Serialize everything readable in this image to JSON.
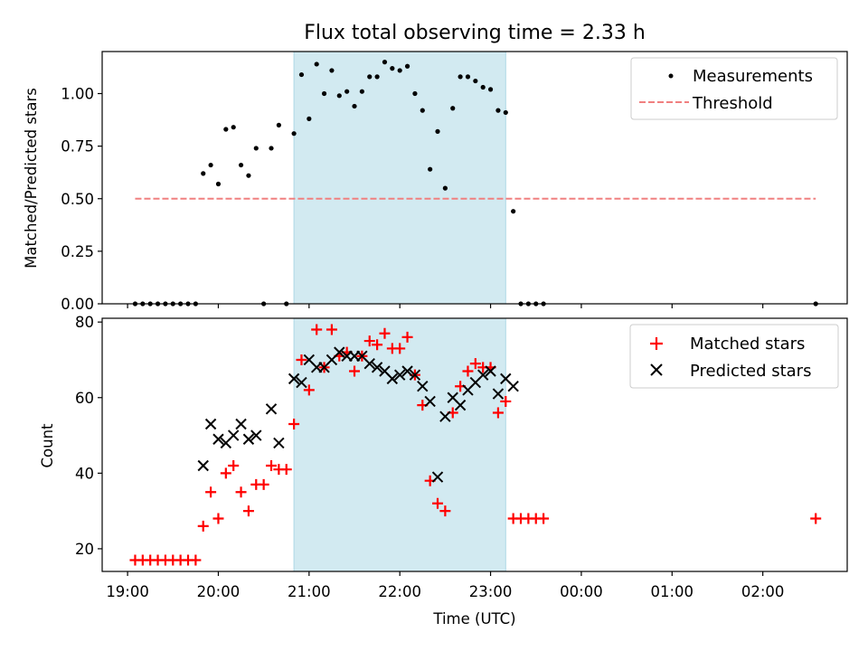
{
  "chart_data": [
    {
      "type": "scatter",
      "title": "Flux total observing time = 2.33 h",
      "xlabel": "",
      "ylabel": "Matched/Predicted stars",
      "ylim": [
        0,
        1.2
      ],
      "yticks": [
        "0.00",
        "0.25",
        "0.50",
        "0.75",
        "1.00"
      ],
      "ytick_values": [
        0,
        0.25,
        0.5,
        0.75,
        1.0
      ],
      "xlim_hours": [
        18.72,
        26.93
      ],
      "grid": false,
      "legend_position": "top-right",
      "shaded_interval": {
        "start": "20:50",
        "end": "23:10",
        "color": "#add8e6"
      },
      "series": [
        {
          "name": "Measurements",
          "marker": "dot",
          "color": "#000000",
          "points": [
            [
              "19:05",
              0
            ],
            [
              "19:10",
              0
            ],
            [
              "19:15",
              0
            ],
            [
              "19:20",
              0
            ],
            [
              "19:25",
              0
            ],
            [
              "19:30",
              0
            ],
            [
              "19:35",
              0
            ],
            [
              "19:40",
              0
            ],
            [
              "19:45",
              0
            ],
            [
              "19:50",
              0.62
            ],
            [
              "19:55",
              0.66
            ],
            [
              "20:00",
              0.57
            ],
            [
              "20:05",
              0.83
            ],
            [
              "20:10",
              0.84
            ],
            [
              "20:15",
              0.66
            ],
            [
              "20:20",
              0.61
            ],
            [
              "20:25",
              0.74
            ],
            [
              "20:30",
              0
            ],
            [
              "20:35",
              0.74
            ],
            [
              "20:40",
              0.85
            ],
            [
              "20:45",
              0
            ],
            [
              "20:50",
              0.81
            ],
            [
              "20:55",
              1.09
            ],
            [
              "21:00",
              0.88
            ],
            [
              "21:05",
              1.14
            ],
            [
              "21:10",
              1.0
            ],
            [
              "21:15",
              1.11
            ],
            [
              "21:20",
              0.99
            ],
            [
              "21:25",
              1.01
            ],
            [
              "21:30",
              0.94
            ],
            [
              "21:35",
              1.01
            ],
            [
              "21:40",
              1.08
            ],
            [
              "21:45",
              1.08
            ],
            [
              "21:50",
              1.15
            ],
            [
              "21:55",
              1.12
            ],
            [
              "22:00",
              1.11
            ],
            [
              "22:05",
              1.13
            ],
            [
              "22:10",
              1.0
            ],
            [
              "22:15",
              0.92
            ],
            [
              "22:20",
              0.64
            ],
            [
              "22:25",
              0.82
            ],
            [
              "22:30",
              0.55
            ],
            [
              "22:35",
              0.93
            ],
            [
              "22:40",
              1.08
            ],
            [
              "22:45",
              1.08
            ],
            [
              "22:50",
              1.06
            ],
            [
              "22:55",
              1.03
            ],
            [
              "23:00",
              1.02
            ],
            [
              "23:05",
              0.92
            ],
            [
              "23:10",
              0.91
            ],
            [
              "23:15",
              0.44
            ],
            [
              "23:20",
              0
            ],
            [
              "23:25",
              0
            ],
            [
              "23:30",
              0
            ],
            [
              "23:35",
              0
            ],
            [
              "02:35",
              0
            ]
          ]
        },
        {
          "name": "Threshold",
          "marker": "dashed-line",
          "color": "#f08080",
          "points": [
            [
              "19:05",
              0.5
            ],
            [
              "02:35",
              0.5
            ]
          ]
        }
      ]
    },
    {
      "type": "scatter",
      "title": "",
      "xlabel": "Time (UTC)",
      "ylabel": "Count",
      "ylim": [
        14,
        81
      ],
      "yticks": [
        "20",
        "40",
        "60",
        "80"
      ],
      "ytick_values": [
        20,
        40,
        60,
        80
      ],
      "xticks": [
        "19:00",
        "20:00",
        "21:00",
        "22:00",
        "23:00",
        "00:00",
        "01:00",
        "02:00"
      ],
      "xtick_hours": [
        19,
        20,
        21,
        22,
        23,
        24,
        25,
        26
      ],
      "xlim_hours": [
        18.72,
        26.93
      ],
      "grid": false,
      "legend_position": "top-right",
      "shaded_interval": {
        "start": "20:50",
        "end": "23:10",
        "color": "#add8e6"
      },
      "series": [
        {
          "name": "Matched stars",
          "marker": "plus",
          "color": "#ff0000",
          "points": [
            [
              "19:05",
              17
            ],
            [
              "19:10",
              17
            ],
            [
              "19:15",
              17
            ],
            [
              "19:20",
              17
            ],
            [
              "19:25",
              17
            ],
            [
              "19:30",
              17
            ],
            [
              "19:35",
              17
            ],
            [
              "19:40",
              17
            ],
            [
              "19:45",
              17
            ],
            [
              "19:50",
              26
            ],
            [
              "19:55",
              35
            ],
            [
              "20:00",
              28
            ],
            [
              "20:05",
              40
            ],
            [
              "20:10",
              42
            ],
            [
              "20:15",
              35
            ],
            [
              "20:20",
              30
            ],
            [
              "20:25",
              37
            ],
            [
              "20:30",
              37
            ],
            [
              "20:35",
              42
            ],
            [
              "20:40",
              41
            ],
            [
              "20:45",
              41
            ],
            [
              "20:50",
              53
            ],
            [
              "20:55",
              70
            ],
            [
              "21:00",
              62
            ],
            [
              "21:05",
              78
            ],
            [
              "21:10",
              68
            ],
            [
              "21:15",
              78
            ],
            [
              "21:20",
              71
            ],
            [
              "21:25",
              72
            ],
            [
              "21:30",
              67
            ],
            [
              "21:35",
              71
            ],
            [
              "21:40",
              75
            ],
            [
              "21:45",
              74
            ],
            [
              "21:50",
              77
            ],
            [
              "21:55",
              73
            ],
            [
              "22:00",
              73
            ],
            [
              "22:05",
              76
            ],
            [
              "22:10",
              66
            ],
            [
              "22:15",
              58
            ],
            [
              "22:20",
              38
            ],
            [
              "22:25",
              32
            ],
            [
              "22:30",
              30
            ],
            [
              "22:35",
              56
            ],
            [
              "22:40",
              63
            ],
            [
              "22:45",
              67
            ],
            [
              "22:50",
              69
            ],
            [
              "22:55",
              68
            ],
            [
              "23:00",
              68
            ],
            [
              "23:05",
              56
            ],
            [
              "23:10",
              59
            ],
            [
              "23:15",
              28
            ],
            [
              "23:20",
              28
            ],
            [
              "23:25",
              28
            ],
            [
              "23:30",
              28
            ],
            [
              "23:35",
              28
            ],
            [
              "02:35",
              28
            ]
          ]
        },
        {
          "name": "Predicted stars",
          "marker": "x",
          "color": "#000000",
          "points": [
            [
              "19:50",
              42
            ],
            [
              "19:55",
              53
            ],
            [
              "20:00",
              49
            ],
            [
              "20:05",
              48
            ],
            [
              "20:10",
              50
            ],
            [
              "20:15",
              53
            ],
            [
              "20:20",
              49
            ],
            [
              "20:25",
              50
            ],
            [
              "20:35",
              57
            ],
            [
              "20:40",
              48
            ],
            [
              "20:50",
              65
            ],
            [
              "20:55",
              64
            ],
            [
              "21:00",
              70
            ],
            [
              "21:05",
              68
            ],
            [
              "21:10",
              68
            ],
            [
              "21:15",
              70
            ],
            [
              "21:20",
              72
            ],
            [
              "21:25",
              71
            ],
            [
              "21:30",
              71
            ],
            [
              "21:35",
              71
            ],
            [
              "21:40",
              69
            ],
            [
              "21:45",
              68
            ],
            [
              "21:50",
              67
            ],
            [
              "21:55",
              65
            ],
            [
              "22:00",
              66
            ],
            [
              "22:05",
              67
            ],
            [
              "22:10",
              66
            ],
            [
              "22:15",
              63
            ],
            [
              "22:20",
              59
            ],
            [
              "22:25",
              39
            ],
            [
              "22:30",
              55
            ],
            [
              "22:35",
              60
            ],
            [
              "22:40",
              58
            ],
            [
              "22:45",
              62
            ],
            [
              "22:50",
              64
            ],
            [
              "22:55",
              66
            ],
            [
              "23:00",
              67
            ],
            [
              "23:05",
              61
            ],
            [
              "23:10",
              65
            ],
            [
              "23:15",
              63
            ]
          ]
        }
      ]
    }
  ]
}
